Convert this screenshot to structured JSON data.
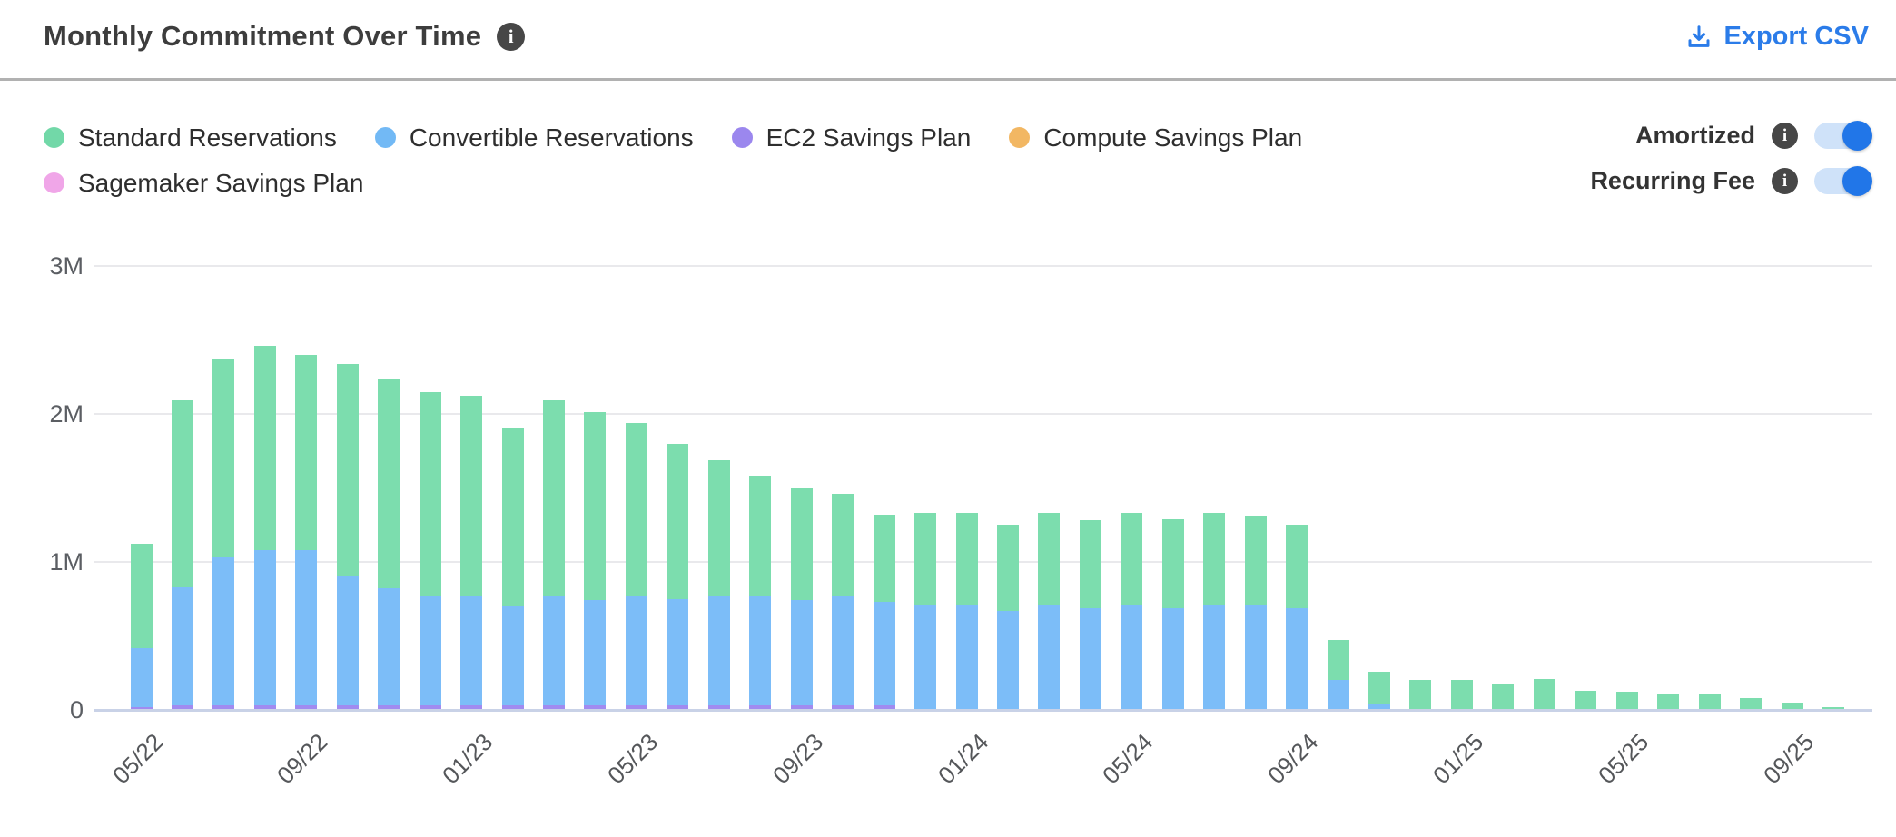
{
  "header": {
    "title": "Monthly Commitment Over Time",
    "export_label": "Export CSV"
  },
  "legend": [
    {
      "key": "standard",
      "label": "Standard Reservations",
      "color": "#72d8a8"
    },
    {
      "key": "convertible",
      "label": "Convertible Reservations",
      "color": "#72b9f5"
    },
    {
      "key": "ec2",
      "label": "EC2 Savings Plan",
      "color": "#9b87ee"
    },
    {
      "key": "compute",
      "label": "Compute Savings Plan",
      "color": "#f2b763"
    },
    {
      "key": "sagemaker",
      "label": "Sagemaker Savings Plan",
      "color": "#f0a6e8"
    }
  ],
  "toggles": [
    {
      "label": "Amortized",
      "state": "on"
    },
    {
      "label": "Recurring Fee",
      "state": "on"
    }
  ],
  "colors": {
    "accent_blue": "#2b7ce9",
    "toggle_track": "#cfe2f9",
    "info_icon_bg": "#474747",
    "gridline": "#e9e9ec",
    "axis_line": "#c9d2e7"
  },
  "chart_data": {
    "type": "bar",
    "stacked": true,
    "unit": "M",
    "ylim_M": [
      0,
      3
    ],
    "y_ticks": [
      {
        "value_M": 0,
        "label": "0"
      },
      {
        "value_M": 1,
        "label": "1M"
      },
      {
        "value_M": 2,
        "label": "2M"
      },
      {
        "value_M": 3,
        "label": "3M"
      }
    ],
    "categories": [
      "05/22",
      "06/22",
      "07/22",
      "08/22",
      "09/22",
      "10/22",
      "11/22",
      "12/22",
      "01/23",
      "02/23",
      "03/23",
      "04/23",
      "05/23",
      "06/23",
      "07/23",
      "08/23",
      "09/23",
      "10/23",
      "11/23",
      "12/23",
      "01/24",
      "02/24",
      "03/24",
      "04/24",
      "05/24",
      "06/24",
      "07/24",
      "08/24",
      "09/24",
      "10/24",
      "11/24",
      "12/24",
      "01/25",
      "02/25",
      "03/25",
      "04/25",
      "05/25",
      "06/25",
      "07/25",
      "08/25",
      "09/25",
      "10/25"
    ],
    "x_tick_indices": [
      0,
      4,
      8,
      12,
      16,
      20,
      24,
      28,
      32,
      36,
      40
    ],
    "x_tick_labels": [
      "05/22",
      "09/22",
      "01/23",
      "05/23",
      "09/23",
      "01/24",
      "05/24",
      "09/24",
      "01/25",
      "05/25",
      "09/25"
    ],
    "legend_position": "top-left",
    "grid": true,
    "series_stack_order_note": "series listed bottom-to-top",
    "series": [
      {
        "name": "Sagemaker Savings Plan",
        "color": "#f0a6e8",
        "values_M": [
          0,
          0,
          0,
          0,
          0,
          0,
          0,
          0,
          0,
          0,
          0,
          0,
          0,
          0,
          0,
          0,
          0,
          0,
          0,
          0,
          0,
          0,
          0,
          0,
          0,
          0,
          0,
          0,
          0,
          0,
          0,
          0,
          0,
          0,
          0,
          0,
          0,
          0,
          0,
          0,
          0,
          0
        ]
      },
      {
        "name": "Compute Savings Plan",
        "color": "#f2b763",
        "values_M": [
          0,
          0,
          0,
          0,
          0,
          0,
          0,
          0,
          0,
          0,
          0,
          0,
          0,
          0,
          0,
          0,
          0,
          0,
          0,
          0,
          0,
          0,
          0,
          0,
          0,
          0,
          0,
          0,
          0,
          0,
          0,
          0,
          0,
          0,
          0,
          0,
          0,
          0,
          0,
          0,
          0,
          0
        ]
      },
      {
        "name": "EC2 Savings Plan",
        "color": "#a18bf0",
        "values_M": [
          0.02,
          0.03,
          0.03,
          0.03,
          0.03,
          0.03,
          0.03,
          0.03,
          0.03,
          0.03,
          0.03,
          0.03,
          0.03,
          0.03,
          0.03,
          0.03,
          0.03,
          0.03,
          0.03,
          0,
          0,
          0,
          0,
          0,
          0,
          0,
          0,
          0,
          0,
          0,
          0,
          0,
          0,
          0,
          0,
          0,
          0,
          0,
          0,
          0,
          0,
          0
        ]
      },
      {
        "name": "Convertible Reservations",
        "color": "#7cbdf8",
        "values_M": [
          0.4,
          0.8,
          1.0,
          1.05,
          1.05,
          0.88,
          0.79,
          0.74,
          0.74,
          0.67,
          0.74,
          0.71,
          0.74,
          0.72,
          0.74,
          0.74,
          0.71,
          0.74,
          0.7,
          0.71,
          0.71,
          0.67,
          0.71,
          0.69,
          0.71,
          0.69,
          0.71,
          0.71,
          0.69,
          0.2,
          0.04,
          0,
          0,
          0,
          0,
          0,
          0,
          0,
          0,
          0,
          0,
          0
        ]
      },
      {
        "name": "Standard Reservations",
        "color": "#7cddae",
        "values_M": [
          0.7,
          1.26,
          1.34,
          1.38,
          1.32,
          1.43,
          1.42,
          1.38,
          1.35,
          1.2,
          1.32,
          1.27,
          1.17,
          1.05,
          0.92,
          0.81,
          0.76,
          0.69,
          0.59,
          0.62,
          0.62,
          0.58,
          0.62,
          0.59,
          0.62,
          0.6,
          0.62,
          0.6,
          0.56,
          0.27,
          0.22,
          0.2,
          0.2,
          0.17,
          0.21,
          0.13,
          0.12,
          0.11,
          0.11,
          0.08,
          0.05,
          0.02
        ]
      }
    ],
    "title": "Monthly Commitment Over Time"
  }
}
